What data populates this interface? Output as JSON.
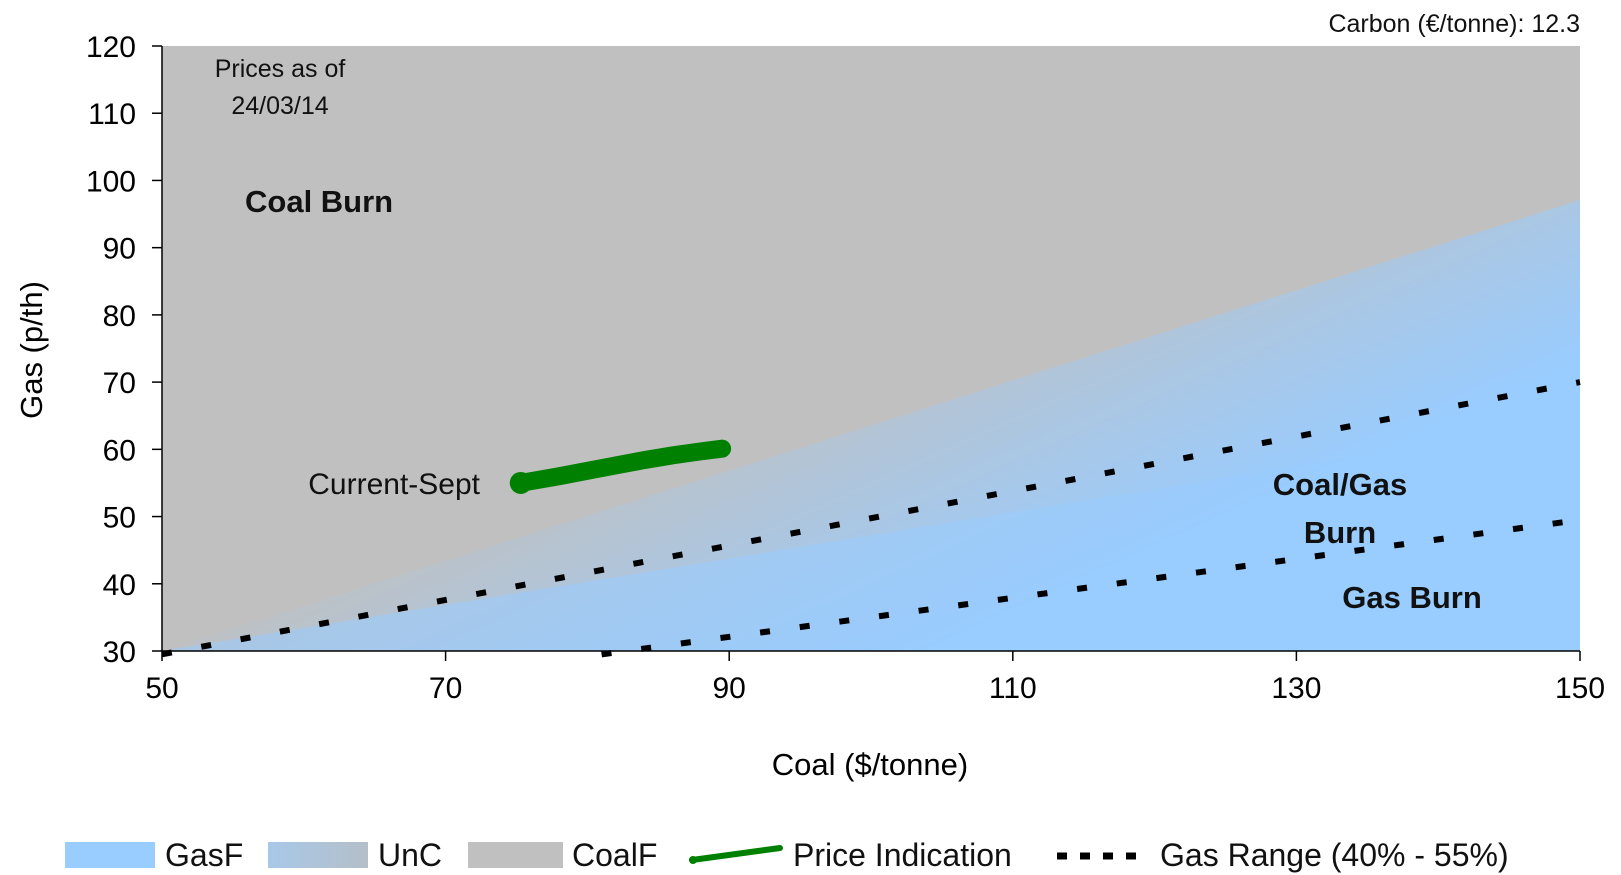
{
  "chart_data": {
    "type": "area",
    "xlabel": "Coal ($/tonne)",
    "ylabel": "Gas (p/th)",
    "xlim": [
      50,
      150
    ],
    "ylim": [
      30,
      120
    ],
    "x_ticks": [
      "50",
      "70",
      "90",
      "110",
      "130",
      "150"
    ],
    "y_ticks": [
      "30",
      "40",
      "50",
      "60",
      "70",
      "80",
      "90",
      "100",
      "110",
      "120"
    ],
    "carbon_note": "Carbon (€/tonne): 12.3",
    "prices_note_line1": "Prices as of",
    "prices_note_line2": "24/03/14",
    "regions": {
      "coal_burn": "Coal Burn",
      "coal_gas_burn_line1": "Coal/Gas",
      "coal_gas_burn_line2": "Burn",
      "gas_burn": "Gas Burn"
    },
    "gas_range": {
      "upper": {
        "x": [
          50,
          150
        ],
        "y": [
          29.5,
          70
        ]
      },
      "lower": {
        "x": [
          81,
          150
        ],
        "y": [
          29.5,
          49.5
        ]
      }
    },
    "price_indication": {
      "label": "Current-Sept",
      "x": [
        75.3,
        78,
        80,
        82,
        84,
        86,
        88,
        89.5
      ],
      "y": [
        55.0,
        56.0,
        56.8,
        57.6,
        58.4,
        59.1,
        59.7,
        60.1
      ]
    },
    "legend": [
      {
        "name": "GasF",
        "color": "#99ccff",
        "kind": "area"
      },
      {
        "name": "UnC",
        "color": "#a9bccc",
        "kind": "area-gradient"
      },
      {
        "name": "CoalF",
        "color": "#c0c0c0",
        "kind": "area"
      },
      {
        "name": "Price Indication",
        "color": "#008000",
        "kind": "line"
      },
      {
        "name": "Gas Range (40% - 55%)",
        "color": "#000000",
        "kind": "dotted"
      }
    ],
    "legend_position": "bottom"
  }
}
